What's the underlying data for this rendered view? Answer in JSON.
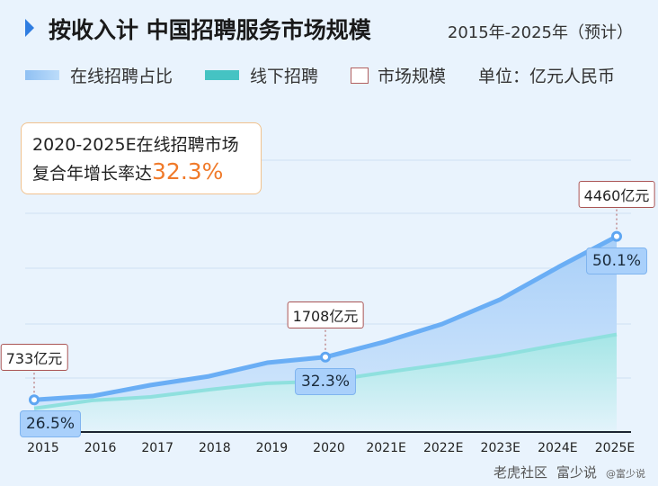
{
  "header": {
    "title": "按收入计 中国招聘服务市场规模",
    "subtitle": "2015年-2025年（预计）"
  },
  "legend": {
    "items": [
      {
        "label": "在线招聘占比",
        "color": "#9cc8f5"
      },
      {
        "label": "线下招聘",
        "color": "#45c3c3"
      },
      {
        "label": "市场规模",
        "color": "#ffffff"
      }
    ],
    "unit": "单位：亿元人民币"
  },
  "callout": {
    "line1": "2020-2025E在线招聘市场",
    "line2_prefix": "复合年增长率达",
    "line2_value": "32.3%"
  },
  "chart_data": {
    "type": "area",
    "categories": [
      "2015",
      "2016",
      "2017",
      "2018",
      "2019",
      "2020",
      "2021E",
      "2022E",
      "2023E",
      "2024E",
      "2025E"
    ],
    "series": [
      {
        "name": "市场规模",
        "values": [
          733,
          820,
          1070,
          1270,
          1580,
          1708,
          2050,
          2460,
          3020,
          3760,
          4460
        ],
        "color": "#6aaef5"
      },
      {
        "name": "线下招聘",
        "values": [
          539,
          720,
          800,
          965,
          1110,
          1156,
          1355,
          1540,
          1745,
          1990,
          2225
        ],
        "color": "#8fe0de"
      }
    ],
    "value_labels": [
      {
        "index": 0,
        "text": "733亿元"
      },
      {
        "index": 5,
        "text": "1708亿元"
      },
      {
        "index": 10,
        "text": "4460亿元"
      }
    ],
    "online_share_labels": [
      {
        "index": 0,
        "text": "26.5%"
      },
      {
        "index": 5,
        "text": "32.3%"
      },
      {
        "index": 10,
        "text": "50.1%"
      }
    ],
    "grid": true,
    "ylim": [
      0,
      9850
    ]
  },
  "watermark": {
    "text1": "老虎社区",
    "text2": "富少说",
    "text3": "@富少说"
  }
}
